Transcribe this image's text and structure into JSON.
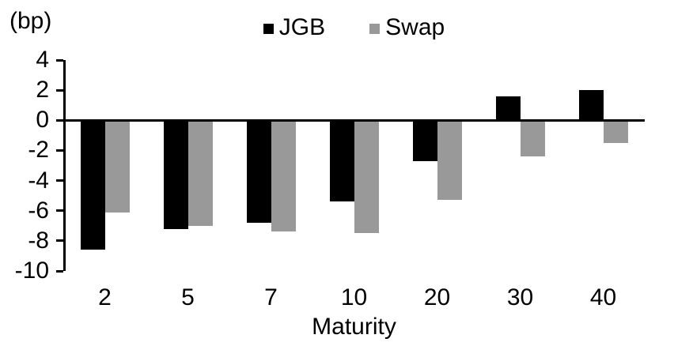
{
  "chart_data": {
    "type": "bar",
    "title": "",
    "ylabel": "(bp)",
    "xlabel": "Maturity",
    "categories": [
      "2",
      "5",
      "7",
      "10",
      "20",
      "30",
      "40"
    ],
    "series": [
      {
        "name": "JGB",
        "color": "#000000",
        "values": [
          -8.6,
          -7.2,
          -6.8,
          -5.4,
          -2.7,
          1.6,
          2.0
        ]
      },
      {
        "name": "Swap",
        "color": "#999999",
        "values": [
          -6.1,
          -7.0,
          -7.4,
          -7.5,
          -5.3,
          -2.4,
          -1.5
        ]
      }
    ],
    "ylim": [
      -10,
      4
    ],
    "yticks": [
      4,
      2,
      0,
      -2,
      -4,
      -6,
      -8,
      -10
    ],
    "ytick_step": 2,
    "grid": false,
    "legend_position": "top-center",
    "background_color": "#ffffff",
    "axis_color": "#000000"
  }
}
